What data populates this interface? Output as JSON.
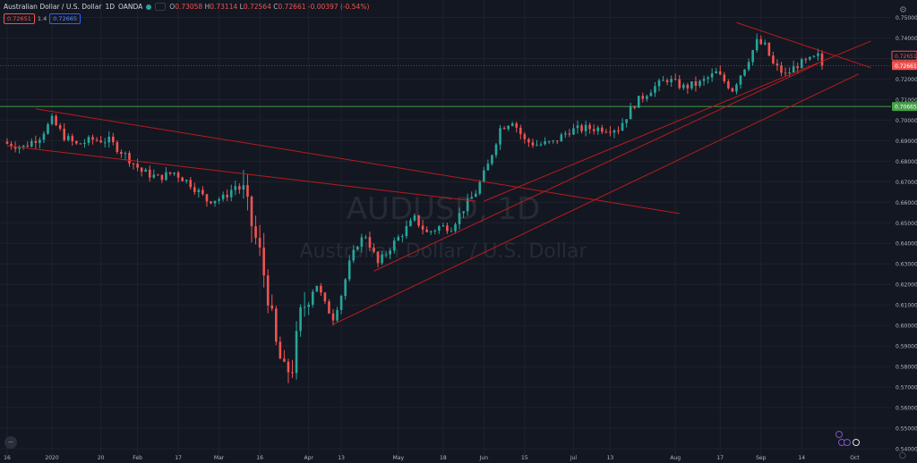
{
  "header": {
    "symbol": "Australian Dollar / U.S. Dollar",
    "interval": "1D",
    "exchange": "OANDA",
    "ohlc": [
      {
        "k": "O",
        "v": "0.73058"
      },
      {
        "k": "H",
        "v": "0.73114"
      },
      {
        "k": "L",
        "v": "0.72564"
      },
      {
        "k": "C",
        "v": "0.72661"
      },
      {
        "k": "",
        "v": "-0.00397 (-0.54%)"
      }
    ],
    "bid": "0.72651",
    "spread": "1.4",
    "ask": "0.72665"
  },
  "watermark": {
    "ticker": "AUDUSD, 1D",
    "name": "Australian Dollar / U.S. Dollar"
  },
  "colors": {
    "up": "#26a69a",
    "down": "#ef5350",
    "trendline": "#b71c1c",
    "horizontal_line": "#43a047",
    "background": "#131722"
  },
  "chart_data": {
    "type": "candlestick",
    "ylim": [
      0.5365,
      0.7585
    ],
    "y_ticks": [
      "0.75000",
      "0.74000",
      "0.73000",
      "0.72000",
      "0.71000",
      "0.70000",
      "0.69000",
      "0.68000",
      "0.67000",
      "0.66000",
      "0.65000",
      "0.64000",
      "0.63000",
      "0.62000",
      "0.61000",
      "0.60000",
      "0.59000",
      "0.58000",
      "0.57000",
      "0.56000",
      "0.55000",
      "0.54000"
    ],
    "x_ticks": [
      {
        "label": "16",
        "i": 0
      },
      {
        "label": "2020",
        "i": 11
      },
      {
        "label": "20",
        "i": 23
      },
      {
        "label": "Feb",
        "i": 32
      },
      {
        "label": "17",
        "i": 42
      },
      {
        "label": "Mar",
        "i": 52
      },
      {
        "label": "16",
        "i": 62
      },
      {
        "label": "Apr",
        "i": 74
      },
      {
        "label": "13",
        "i": 82
      },
      {
        "label": "May",
        "i": 96
      },
      {
        "label": "18",
        "i": 107
      },
      {
        "label": "Jun",
        "i": 117
      },
      {
        "label": "15",
        "i": 127
      },
      {
        "label": "Jul",
        "i": 139
      },
      {
        "label": "13",
        "i": 148
      },
      {
        "label": "Aug",
        "i": 164
      },
      {
        "label": "17",
        "i": 175
      },
      {
        "label": "Sep",
        "i": 185
      },
      {
        "label": "14",
        "i": 195
      },
      {
        "label": "Oct",
        "i": 208
      }
    ],
    "last_price": "0.72661",
    "last_bid_label": "0.72651",
    "horizontal_line": {
      "y": 0.70665,
      "label": "0.70665"
    },
    "trendlines": [
      {
        "x1": 7,
        "y1": 0.7055,
        "x2": 165,
        "y2": 0.6545
      },
      {
        "x1": 0,
        "y1": 0.6875,
        "x2": 115,
        "y2": 0.6605
      },
      {
        "x1": 80,
        "y1": 0.6005,
        "x2": 209,
        "y2": 0.7225
      },
      {
        "x1": 90,
        "y1": 0.6265,
        "x2": 199,
        "y2": 0.7275
      },
      {
        "x1": 117,
        "y1": 0.6605,
        "x2": 212,
        "y2": 0.7385
      },
      {
        "x1": 179,
        "y1": 0.7475,
        "x2": 212,
        "y2": 0.7255
      }
    ],
    "anchors": [
      [
        0,
        0.6885
      ],
      [
        4,
        0.687
      ],
      [
        8,
        0.692
      ],
      [
        11,
        0.7
      ],
      [
        14,
        0.692
      ],
      [
        17,
        0.688
      ],
      [
        21,
        0.6905
      ],
      [
        25,
        0.69
      ],
      [
        29,
        0.683
      ],
      [
        33,
        0.675
      ],
      [
        37,
        0.672
      ],
      [
        41,
        0.6745
      ],
      [
        45,
        0.669
      ],
      [
        49,
        0.661
      ],
      [
        53,
        0.662
      ],
      [
        56,
        0.668
      ],
      [
        58,
        0.665
      ],
      [
        60,
        0.649
      ],
      [
        62,
        0.635
      ],
      [
        64,
        0.615
      ],
      [
        66,
        0.59
      ],
      [
        68,
        0.577
      ],
      [
        70,
        0.58
      ],
      [
        72,
        0.605
      ],
      [
        74,
        0.615
      ],
      [
        76,
        0.62
      ],
      [
        78,
        0.61
      ],
      [
        80,
        0.604
      ],
      [
        82,
        0.615
      ],
      [
        84,
        0.63
      ],
      [
        86,
        0.64
      ],
      [
        88,
        0.644
      ],
      [
        91,
        0.63
      ],
      [
        94,
        0.638
      ],
      [
        97,
        0.645
      ],
      [
        100,
        0.652
      ],
      [
        103,
        0.645
      ],
      [
        106,
        0.648
      ],
      [
        109,
        0.648
      ],
      [
        112,
        0.657
      ],
      [
        115,
        0.665
      ],
      [
        118,
        0.678
      ],
      [
        121,
        0.696
      ],
      [
        124,
        0.7
      ],
      [
        127,
        0.69
      ],
      [
        130,
        0.688
      ],
      [
        134,
        0.689
      ],
      [
        138,
        0.695
      ],
      [
        142,
        0.696
      ],
      [
        146,
        0.696
      ],
      [
        150,
        0.696
      ],
      [
        154,
        0.708
      ],
      [
        158,
        0.715
      ],
      [
        162,
        0.72
      ],
      [
        166,
        0.716
      ],
      [
        170,
        0.718
      ],
      [
        174,
        0.723
      ],
      [
        178,
        0.715
      ],
      [
        181,
        0.726
      ],
      [
        184,
        0.738
      ],
      [
        186,
        0.736
      ],
      [
        188,
        0.727
      ],
      [
        191,
        0.722
      ],
      [
        194,
        0.727
      ],
      [
        197,
        0.729
      ],
      [
        199,
        0.731
      ],
      [
        200,
        0.7266
      ]
    ]
  },
  "controls": {
    "bottom_left_icon": "~",
    "settings_icon": "⚙",
    "clock_icon": "○"
  }
}
